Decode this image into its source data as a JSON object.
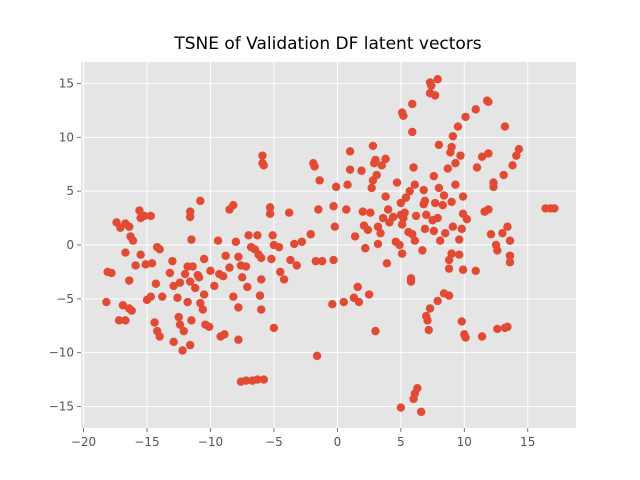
{
  "chart_data": {
    "type": "scatter",
    "title": "TSNE of Validation DF latent vectors",
    "xlabel": "",
    "ylabel": "",
    "xlim": [
      -20.2,
      18.8
    ],
    "ylim": [
      -17.0,
      17.0
    ],
    "xticks": [
      -20,
      -15,
      -10,
      -5,
      0,
      5,
      10,
      15
    ],
    "yticks": [
      -15,
      -10,
      -5,
      0,
      5,
      10,
      15
    ],
    "grid": true,
    "style": "ggplot",
    "colors": {
      "marker": "#E24A33",
      "plot_background": "#E5E5E5",
      "grid": "#FFFFFF"
    },
    "series": [
      {
        "points": [
          [
            -18.1,
            -2.5
          ],
          [
            -17.8,
            -2.6
          ],
          [
            -18.2,
            -5.3
          ],
          [
            -17.4,
            2.1
          ],
          [
            -17.1,
            1.6
          ],
          [
            -16.7,
            2.0
          ],
          [
            -16.7,
            -0.7
          ],
          [
            -16.4,
            1.7
          ],
          [
            -16.3,
            0.8
          ],
          [
            -16.1,
            0.4
          ],
          [
            -15.9,
            -1.9
          ],
          [
            -16.4,
            -3.3
          ],
          [
            -15.6,
            3.2
          ],
          [
            -15.2,
            2.7
          ],
          [
            -15.5,
            2.5
          ],
          [
            -14.7,
            2.7
          ],
          [
            -15.5,
            -0.9
          ],
          [
            -15.1,
            -1.8
          ],
          [
            -14.6,
            -1.7
          ],
          [
            -14.2,
            -0.2
          ],
          [
            -14.0,
            -0.4
          ],
          [
            -15.0,
            -5.1
          ],
          [
            -14.7,
            -4.8
          ],
          [
            -14.3,
            -3.6
          ],
          [
            -13.8,
            -4.8
          ],
          [
            -13.2,
            -2.6
          ],
          [
            -13.0,
            -1.5
          ],
          [
            -12.9,
            -3.8
          ],
          [
            -12.6,
            -4.9
          ],
          [
            -12.4,
            -3.5
          ],
          [
            -17.2,
            -7.0
          ],
          [
            -16.9,
            -5.6
          ],
          [
            -16.4,
            -5.9
          ],
          [
            -16.2,
            -6.1
          ],
          [
            -16.7,
            -7.0
          ],
          [
            -14.4,
            -7.2
          ],
          [
            -14.2,
            -8.0
          ],
          [
            -14.0,
            -8.5
          ],
          [
            -12.9,
            -9.0
          ],
          [
            -12.5,
            -6.7
          ],
          [
            -12.4,
            -7.4
          ],
          [
            -12.2,
            -9.8
          ],
          [
            -12.0,
            -2.7
          ],
          [
            -11.8,
            -2.0
          ],
          [
            -11.6,
            -3.4
          ],
          [
            -11.4,
            -2.0
          ],
          [
            -11.2,
            -4.0
          ],
          [
            -11.0,
            -2.8
          ],
          [
            -11.5,
            0.5
          ],
          [
            -11.6,
            2.6
          ],
          [
            -11.6,
            3.1
          ],
          [
            -10.8,
            4.1
          ],
          [
            -10.5,
            -1.3
          ],
          [
            -10.9,
            -3.0
          ],
          [
            -10.5,
            -4.6
          ],
          [
            -10.8,
            -5.4
          ],
          [
            -10.6,
            -6.0
          ],
          [
            -10.4,
            -7.4
          ],
          [
            -10.1,
            -7.6
          ],
          [
            -11.5,
            -7.0
          ],
          [
            -11.6,
            -9.3
          ],
          [
            -11.8,
            -5.3
          ],
          [
            -12.1,
            -8.0
          ],
          [
            -10.0,
            -2.4
          ],
          [
            -9.7,
            -3.8
          ],
          [
            -9.4,
            0.4
          ],
          [
            -9.3,
            -2.7
          ],
          [
            -9.0,
            -2.9
          ],
          [
            -9.2,
            -8.5
          ],
          [
            -8.9,
            -8.3
          ],
          [
            -8.8,
            -1.0
          ],
          [
            -8.5,
            -2.1
          ],
          [
            -8.2,
            -4.8
          ],
          [
            -8.5,
            3.3
          ],
          [
            -8.2,
            3.7
          ],
          [
            -8.0,
            0.3
          ],
          [
            -7.8,
            -1.1
          ],
          [
            -7.6,
            -1.9
          ],
          [
            -7.8,
            -5.8
          ],
          [
            -7.8,
            -8.8
          ],
          [
            -7.5,
            -3.0
          ],
          [
            -7.2,
            -2.0
          ],
          [
            -7.1,
            -3.9
          ],
          [
            -7.0,
            0.9
          ],
          [
            -6.8,
            -0.2
          ],
          [
            -6.5,
            -0.4
          ],
          [
            -6.3,
            0.9
          ],
          [
            -6.2,
            -0.9
          ],
          [
            -6.0,
            -1.2
          ],
          [
            -6.0,
            -3.2
          ],
          [
            -6.1,
            -4.7
          ],
          [
            -6.0,
            -6.0
          ],
          [
            -5.8,
            7.4
          ],
          [
            -5.9,
            7.6
          ],
          [
            -5.9,
            8.3
          ],
          [
            -5.3,
            3.5
          ],
          [
            -5.3,
            2.9
          ],
          [
            -5.1,
            0.9
          ],
          [
            -5.0,
            0.0
          ],
          [
            -5.2,
            -1.3
          ],
          [
            -4.6,
            -0.2
          ],
          [
            -4.5,
            -2.5
          ],
          [
            -4.2,
            -3.2
          ],
          [
            -3.8,
            3.0
          ],
          [
            -3.7,
            -1.4
          ],
          [
            -3.4,
            0.1
          ],
          [
            -3.2,
            -1.9
          ],
          [
            -2.8,
            0.3
          ],
          [
            -2.1,
            1.0
          ],
          [
            -1.9,
            7.6
          ],
          [
            -1.8,
            7.3
          ],
          [
            -1.4,
            6.0
          ],
          [
            -1.5,
            3.3
          ],
          [
            -1.2,
            -1.5
          ],
          [
            -1.7,
            -1.5
          ],
          [
            -1.6,
            -10.3
          ],
          [
            -5.0,
            -7.7
          ],
          [
            -5.8,
            -12.5
          ],
          [
            -6.3,
            -12.5
          ],
          [
            -6.7,
            -12.6
          ],
          [
            -7.2,
            -12.6
          ],
          [
            -7.6,
            -12.7
          ],
          [
            -0.3,
            3.6
          ],
          [
            -0.1,
            5.4
          ],
          [
            -0.2,
            1.7
          ],
          [
            -0.3,
            -1.4
          ],
          [
            -0.4,
            -5.5
          ],
          [
            0.5,
            -5.3
          ],
          [
            0.7,
            3.3
          ],
          [
            0.8,
            5.6
          ],
          [
            1.0,
            7.0
          ],
          [
            1.0,
            8.7
          ],
          [
            1.4,
            0.8
          ],
          [
            1.3,
            -4.9
          ],
          [
            1.6,
            -3.9
          ],
          [
            1.7,
            -5.3
          ],
          [
            1.9,
            6.9
          ],
          [
            2.0,
            3.1
          ],
          [
            2.1,
            1.8
          ],
          [
            2.2,
            -0.3
          ],
          [
            2.4,
            1.4
          ],
          [
            2.6,
            3.0
          ],
          [
            2.7,
            5.3
          ],
          [
            2.5,
            -4.6
          ],
          [
            2.8,
            6.0
          ],
          [
            2.8,
            9.2
          ],
          [
            2.9,
            7.6
          ],
          [
            3.0,
            7.9
          ],
          [
            3.0,
            -8.0
          ],
          [
            3.1,
            6.5
          ],
          [
            3.2,
            1.7
          ],
          [
            3.2,
            0.1
          ],
          [
            3.4,
            1.1
          ],
          [
            3.5,
            7.4
          ],
          [
            3.6,
            2.5
          ],
          [
            3.8,
            4.5
          ],
          [
            3.8,
            8.0
          ],
          [
            3.9,
            -1.7
          ],
          [
            4.0,
            3.3
          ],
          [
            4.1,
            2.1
          ],
          [
            4.4,
            2.6
          ],
          [
            4.7,
            5.8
          ],
          [
            4.6,
            0.3
          ],
          [
            4.9,
            0.0
          ],
          [
            5.0,
            2.8
          ],
          [
            5.0,
            3.9
          ],
          [
            5.1,
            -0.8
          ],
          [
            5.1,
            1.9
          ],
          [
            5.2,
            2.5
          ],
          [
            5.2,
            12.0
          ],
          [
            5.1,
            12.3
          ],
          [
            5.3,
            3.0
          ],
          [
            5.4,
            4.4
          ],
          [
            5.6,
            1.2
          ],
          [
            5.7,
            5.0
          ],
          [
            5.9,
            10.5
          ],
          [
            5.9,
            13.1
          ],
          [
            6.0,
            7.2
          ],
          [
            6.1,
            5.6
          ],
          [
            5.8,
            -3.1
          ],
          [
            5.8,
            -3.4
          ],
          [
            5.9,
            1.0
          ],
          [
            6.1,
            0.4
          ],
          [
            6.2,
            2.7
          ],
          [
            6.3,
            -13.3
          ],
          [
            6.1,
            -13.8
          ],
          [
            6.0,
            -14.3
          ],
          [
            6.6,
            -15.5
          ],
          [
            5.0,
            -15.1
          ],
          [
            6.7,
            -0.5
          ],
          [
            6.9,
            1.5
          ],
          [
            6.8,
            3.8
          ],
          [
            6.8,
            5.1
          ],
          [
            6.9,
            4.1
          ],
          [
            7.0,
            2.8
          ],
          [
            7.0,
            -6.6
          ],
          [
            7.2,
            -7.9
          ],
          [
            7.1,
            -7.0
          ],
          [
            7.3,
            -5.9
          ],
          [
            7.3,
            14.1
          ],
          [
            7.4,
            14.8
          ],
          [
            7.3,
            15.1
          ],
          [
            7.6,
            1.3
          ],
          [
            7.5,
            2.3
          ],
          [
            7.6,
            6.4
          ],
          [
            7.7,
            3.9
          ],
          [
            7.7,
            13.9
          ],
          [
            7.9,
            15.4
          ],
          [
            7.9,
            2.5
          ],
          [
            7.9,
            -5.2
          ],
          [
            8.0,
            9.3
          ],
          [
            8.0,
            5.3
          ],
          [
            8.1,
            0.4
          ],
          [
            8.3,
            3.7
          ],
          [
            8.5,
            1.1
          ],
          [
            8.4,
            -4.5
          ],
          [
            8.4,
            4.6
          ],
          [
            8.7,
            7.1
          ],
          [
            8.8,
            -4.7
          ],
          [
            8.8,
            -1.4
          ],
          [
            8.8,
            -2.2
          ],
          [
            8.9,
            8.6
          ],
          [
            9.0,
            9.1
          ],
          [
            9.1,
            10.1
          ],
          [
            9.0,
            -0.8
          ],
          [
            9.1,
            1.7
          ],
          [
            9.0,
            4.0
          ],
          [
            9.3,
            5.6
          ],
          [
            9.3,
            7.6
          ],
          [
            9.5,
            11.0
          ],
          [
            9.6,
            0.5
          ],
          [
            9.6,
            -0.9
          ],
          [
            9.7,
            8.3
          ],
          [
            9.8,
            1.5
          ],
          [
            9.9,
            2.9
          ],
          [
            9.9,
            4.5
          ],
          [
            9.9,
            -2.3
          ],
          [
            9.8,
            -7.1
          ],
          [
            10.1,
            -8.6
          ],
          [
            10.0,
            -8.3
          ],
          [
            10.1,
            11.9
          ],
          [
            10.2,
            2.4
          ],
          [
            10.9,
            12.6
          ],
          [
            10.9,
            -2.4
          ],
          [
            11.0,
            7.2
          ],
          [
            11.4,
            8.2
          ],
          [
            11.4,
            -8.5
          ],
          [
            11.6,
            3.1
          ],
          [
            11.8,
            13.4
          ],
          [
            11.9,
            13.3
          ],
          [
            11.9,
            3.3
          ],
          [
            11.9,
            8.5
          ],
          [
            12.1,
            1.0
          ],
          [
            12.3,
            5.8
          ],
          [
            12.3,
            5.4
          ],
          [
            12.5,
            0.0
          ],
          [
            12.6,
            -0.5
          ],
          [
            12.6,
            -7.8
          ],
          [
            13.0,
            1.1
          ],
          [
            13.1,
            6.5
          ],
          [
            13.2,
            -7.7
          ],
          [
            13.2,
            11.0
          ],
          [
            13.4,
            -7.6
          ],
          [
            13.4,
            1.7
          ],
          [
            13.6,
            0.4
          ],
          [
            13.6,
            -1.0
          ],
          [
            13.6,
            -1.6
          ],
          [
            13.8,
            7.4
          ],
          [
            14.1,
            8.3
          ],
          [
            14.3,
            8.9
          ],
          [
            16.4,
            3.4
          ],
          [
            16.8,
            3.4
          ],
          [
            17.1,
            3.4
          ]
        ]
      }
    ]
  }
}
